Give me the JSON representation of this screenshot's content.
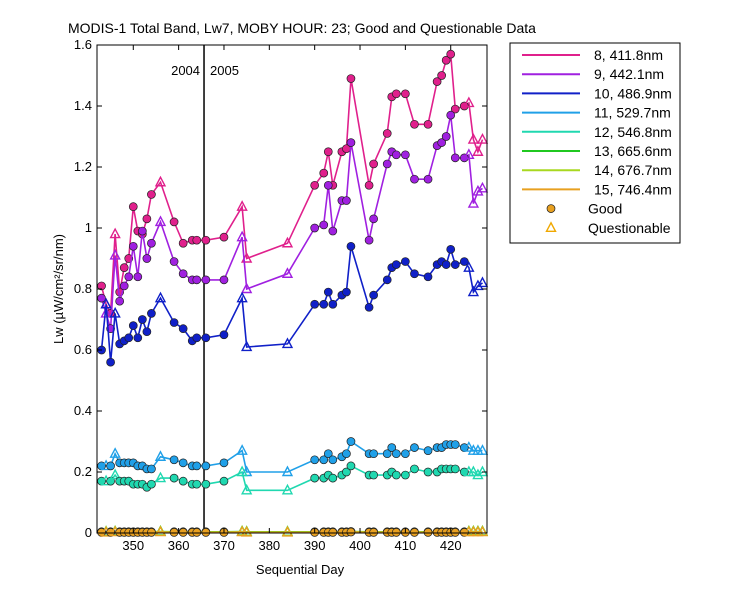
{
  "chart_data": {
    "type": "line",
    "title": "MODIS-1 Total Band,  Lw7, MOBY HOUR: 23;  Good and Questionable Data",
    "xlabel": "Sequential Day",
    "ylabel": "Lw (µW/cm²/sr/nm)",
    "xlim": [
      342,
      428
    ],
    "ylim": [
      0,
      1.6
    ],
    "xticks": [
      350,
      360,
      370,
      380,
      390,
      400,
      410,
      420
    ],
    "yticks": [
      0,
      0.2,
      0.4,
      0.6,
      0.8,
      1,
      1.2,
      1.4,
      1.6
    ],
    "xtick_labels": [
      "350",
      "360",
      "370",
      "380",
      "390",
      "400",
      "410",
      "420"
    ],
    "ytick_labels": [
      "0",
      "0.2",
      "0.4",
      "0.6",
      "0.8",
      "1",
      "1.2",
      "1.4",
      "1.6"
    ],
    "grid": false,
    "legend_position": "outside-right",
    "annotations": [
      {
        "text": "2004",
        "x": 365.6,
        "side": "left"
      },
      {
        "text": "2005",
        "x": 365.6,
        "side": "right"
      }
    ],
    "year_divider_x": 365.6,
    "markers_legend": [
      {
        "label": "Good",
        "marker": "circle",
        "color": "#e8a020"
      },
      {
        "label": "Questionable",
        "marker": "triangle",
        "color": "#f0a800"
      }
    ],
    "x": [
      343,
      344,
      345,
      346,
      347,
      348,
      349,
      350,
      351,
      352,
      353,
      354,
      356,
      359,
      361,
      363,
      364,
      366,
      370,
      374,
      375,
      384,
      390,
      392,
      393,
      394,
      396,
      397,
      398,
      402,
      403,
      406,
      407,
      408,
      410,
      412,
      415,
      417,
      418,
      419,
      420,
      421,
      423,
      424,
      425,
      426,
      427
    ],
    "quality": [
      "G",
      "Q",
      "G",
      "Q",
      "G",
      "G",
      "G",
      "G",
      "G",
      "G",
      "G",
      "G",
      "Q",
      "G",
      "G",
      "G",
      "G",
      "G",
      "G",
      "Q",
      "Q",
      "Q",
      "G",
      "G",
      "G",
      "G",
      "G",
      "G",
      "G",
      "G",
      "G",
      "G",
      "G",
      "G",
      "G",
      "G",
      "G",
      "G",
      "G",
      "G",
      "G",
      "G",
      "G",
      "Q",
      "Q",
      "Q",
      "Q"
    ],
    "series": [
      {
        "name": "8, 411.8nm",
        "color": "#e0208c",
        "values": [
          0.81,
          0.75,
          0.72,
          0.98,
          0.79,
          0.87,
          0.9,
          1.07,
          0.99,
          0.98,
          1.03,
          1.11,
          1.15,
          1.02,
          0.95,
          0.96,
          0.96,
          0.96,
          0.97,
          1.07,
          0.9,
          0.95,
          1.14,
          1.18,
          1.25,
          1.14,
          1.25,
          1.26,
          1.49,
          1.14,
          1.21,
          1.31,
          1.43,
          1.44,
          1.44,
          1.34,
          1.34,
          1.48,
          1.5,
          1.55,
          1.57,
          1.39,
          1.4,
          1.41,
          1.29,
          1.25,
          1.29
        ]
      },
      {
        "name": "9, 442.1nm",
        "color": "#a020e0",
        "values": [
          0.77,
          0.72,
          0.67,
          0.91,
          0.76,
          0.81,
          0.84,
          0.94,
          0.84,
          0.99,
          0.9,
          0.95,
          1.02,
          0.89,
          0.85,
          0.83,
          0.83,
          0.83,
          0.83,
          0.97,
          0.8,
          0.85,
          1.0,
          1.01,
          1.14,
          0.99,
          1.09,
          1.09,
          1.28,
          0.96,
          1.03,
          1.21,
          1.25,
          1.24,
          1.24,
          1.16,
          1.16,
          1.27,
          1.28,
          1.3,
          1.37,
          1.23,
          1.23,
          1.24,
          1.08,
          1.12,
          1.13
        ]
      },
      {
        "name": "10, 486.9nm",
        "color": "#1020c8",
        "values": [
          0.6,
          0.75,
          0.56,
          0.72,
          0.62,
          0.63,
          0.64,
          0.68,
          0.64,
          0.7,
          0.66,
          0.72,
          0.77,
          0.69,
          0.67,
          0.63,
          0.64,
          0.64,
          0.65,
          0.77,
          0.61,
          0.62,
          0.75,
          0.75,
          0.79,
          0.75,
          0.78,
          0.79,
          0.94,
          0.74,
          0.78,
          0.83,
          0.87,
          0.88,
          0.89,
          0.85,
          0.84,
          0.88,
          0.89,
          0.88,
          0.93,
          0.88,
          0.89,
          0.87,
          0.79,
          0.81,
          0.82
        ]
      },
      {
        "name": "11, 529.7nm",
        "color": "#20a0e8",
        "values": [
          0.22,
          0.22,
          0.22,
          0.26,
          0.23,
          0.23,
          0.23,
          0.23,
          0.22,
          0.22,
          0.21,
          0.21,
          0.25,
          0.24,
          0.23,
          0.22,
          0.22,
          0.22,
          0.23,
          0.27,
          0.2,
          0.2,
          0.24,
          0.24,
          0.26,
          0.24,
          0.25,
          0.26,
          0.3,
          0.26,
          0.26,
          0.26,
          0.28,
          0.26,
          0.26,
          0.28,
          0.27,
          0.28,
          0.28,
          0.29,
          0.29,
          0.29,
          0.28,
          0.28,
          0.27,
          0.27,
          0.27
        ]
      },
      {
        "name": "12, 546.8nm",
        "color": "#20d8b0",
        "values": [
          0.17,
          0.17,
          0.17,
          0.19,
          0.17,
          0.17,
          0.17,
          0.16,
          0.16,
          0.16,
          0.15,
          0.16,
          0.18,
          0.18,
          0.17,
          0.16,
          0.16,
          0.16,
          0.17,
          0.2,
          0.14,
          0.14,
          0.18,
          0.18,
          0.19,
          0.18,
          0.19,
          0.2,
          0.22,
          0.19,
          0.19,
          0.19,
          0.2,
          0.19,
          0.19,
          0.21,
          0.2,
          0.2,
          0.21,
          0.21,
          0.21,
          0.21,
          0.2,
          0.2,
          0.2,
          0.19,
          0.2
        ]
      },
      {
        "name": "13, 665.6nm",
        "color": "#20c820",
        "values": [
          0.004,
          0.004,
          0.004,
          0.005,
          0.004,
          0.004,
          0.004,
          0.004,
          0.004,
          0.004,
          0.004,
          0.004,
          0.005,
          0.004,
          0.004,
          0.004,
          0.004,
          0.004,
          0.004,
          0.005,
          0.004,
          0.004,
          0.004,
          0.004,
          0.004,
          0.004,
          0.004,
          0.004,
          0.005,
          0.004,
          0.004,
          0.004,
          0.004,
          0.004,
          0.004,
          0.004,
          0.004,
          0.004,
          0.004,
          0.004,
          0.004,
          0.004,
          0.004,
          0.005,
          0.005,
          0.005,
          0.005
        ]
      },
      {
        "name": "14, 676.7nm",
        "color": "#a8d820",
        "values": [
          0.003,
          0.003,
          0.003,
          0.004,
          0.003,
          0.003,
          0.003,
          0.003,
          0.003,
          0.003,
          0.003,
          0.003,
          0.004,
          0.003,
          0.003,
          0.003,
          0.003,
          0.003,
          0.003,
          0.004,
          0.003,
          0.003,
          0.003,
          0.003,
          0.003,
          0.003,
          0.003,
          0.003,
          0.004,
          0.003,
          0.003,
          0.003,
          0.003,
          0.003,
          0.003,
          0.003,
          0.003,
          0.003,
          0.003,
          0.003,
          0.003,
          0.003,
          0.003,
          0.004,
          0.004,
          0.004,
          0.004
        ]
      },
      {
        "name": "15, 746.4nm",
        "color": "#e8a020",
        "values": [
          0.002,
          0.002,
          0.002,
          0.003,
          0.002,
          0.002,
          0.002,
          0.002,
          0.002,
          0.002,
          0.002,
          0.002,
          0.003,
          0.002,
          0.002,
          0.002,
          0.002,
          0.002,
          0.002,
          0.003,
          0.002,
          0.002,
          0.002,
          0.002,
          0.002,
          0.002,
          0.002,
          0.002,
          0.003,
          0.002,
          0.002,
          0.002,
          0.002,
          0.002,
          0.002,
          0.002,
          0.002,
          0.002,
          0.002,
          0.002,
          0.002,
          0.002,
          0.002,
          0.003,
          0.003,
          0.003,
          0.003
        ]
      }
    ]
  }
}
